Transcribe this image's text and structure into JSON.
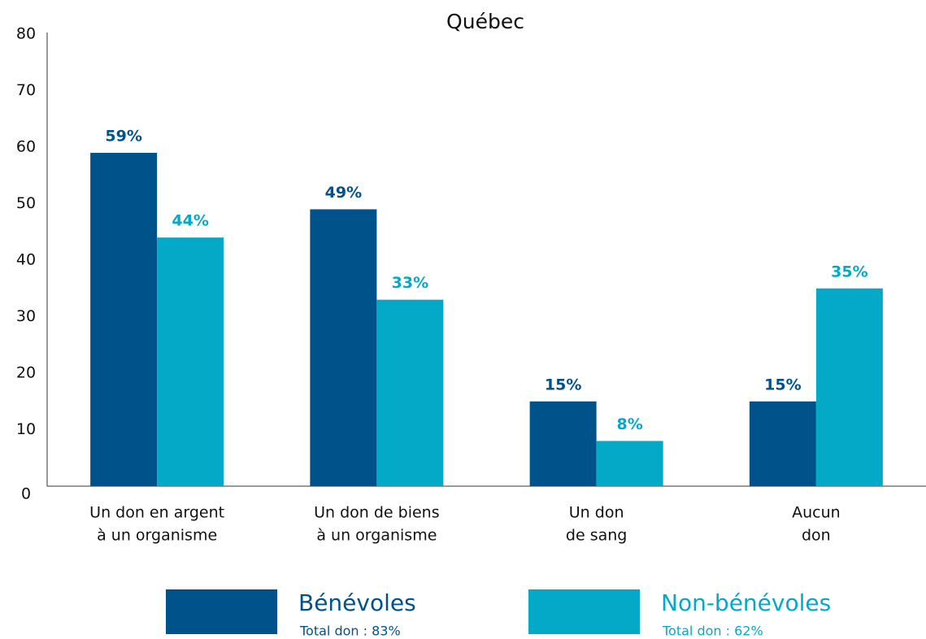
{
  "chart_data": {
    "type": "bar",
    "title": "Québec",
    "categories": [
      [
        "Un don en argent",
        "à un organisme"
      ],
      [
        "Un don de biens",
        "à un organisme"
      ],
      [
        "Un don",
        "de sang"
      ],
      [
        "Aucun",
        "don"
      ]
    ],
    "series": [
      {
        "name": "Bénévoles",
        "color": "#00538a",
        "values": [
          59,
          49,
          15,
          15
        ],
        "value_labels": [
          "59%",
          "49%",
          "15%",
          "15%"
        ],
        "total_label": "Total don : 83%"
      },
      {
        "name": "Non-bénévoles",
        "color": "#05a9c8",
        "values": [
          44,
          33,
          8,
          35
        ],
        "value_labels": [
          "44%",
          "33%",
          "8%",
          "35%"
        ],
        "total_label": "Total don : 62%"
      }
    ],
    "ylim": [
      0,
      80
    ],
    "yticks": [
      0,
      10,
      20,
      30,
      40,
      50,
      60,
      70,
      80
    ],
    "grid": false
  }
}
